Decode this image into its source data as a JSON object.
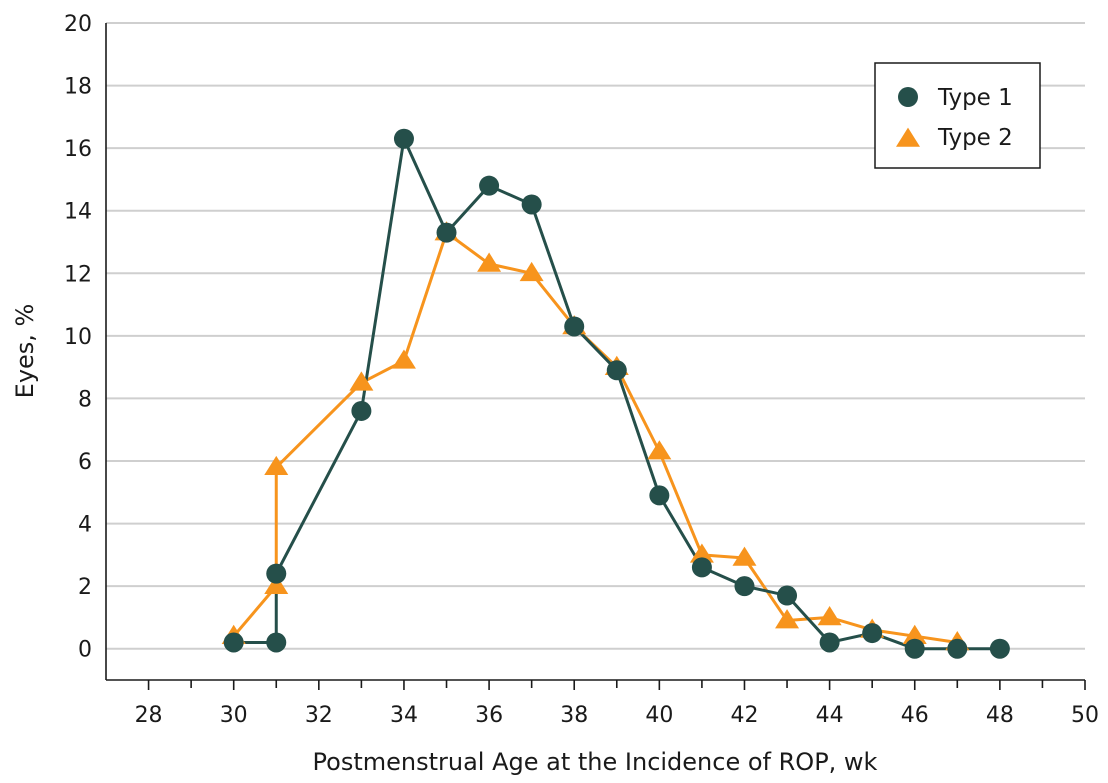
{
  "chart_data": {
    "type": "line",
    "title": "",
    "xlabel": "Postmenstrual Age at the Incidence of ROP, wk",
    "ylabel": "Eyes, %",
    "xlim": [
      27,
      50
    ],
    "ylim": [
      -1,
      20
    ],
    "x_ticks": [
      28,
      30,
      32,
      34,
      36,
      38,
      40,
      42,
      44,
      46,
      48,
      50
    ],
    "x_minor_ticks": [
      29,
      31,
      33,
      35,
      37,
      39,
      41,
      43,
      45,
      47,
      49
    ],
    "y_ticks": [
      0,
      2,
      4,
      6,
      8,
      10,
      12,
      14,
      16,
      18,
      20
    ],
    "grid": "horizontal",
    "legend_position": "top-right",
    "series": [
      {
        "name": "Type 1",
        "marker": "circle",
        "color": "#254f4a",
        "points": [
          [
            30,
            0.2
          ],
          [
            31,
            0.2
          ],
          [
            31,
            2.4
          ],
          [
            33,
            7.6
          ],
          [
            34,
            16.3
          ],
          [
            35,
            13.3
          ],
          [
            36,
            14.8
          ],
          [
            37,
            14.2
          ],
          [
            38,
            10.3
          ],
          [
            39,
            8.9
          ],
          [
            40,
            4.9
          ],
          [
            41,
            2.6
          ],
          [
            42,
            2.0
          ],
          [
            43,
            1.7
          ],
          [
            44,
            0.2
          ],
          [
            45,
            0.5
          ],
          [
            46,
            0.0
          ],
          [
            47,
            0.0
          ],
          [
            48,
            0.0
          ]
        ]
      },
      {
        "name": "Type 2",
        "marker": "triangle",
        "color": "#f7941d",
        "points": [
          [
            30,
            0.4
          ],
          [
            31,
            2.0
          ],
          [
            31,
            5.8
          ],
          [
            33,
            8.5
          ],
          [
            34,
            9.2
          ],
          [
            35,
            13.3
          ],
          [
            36,
            12.3
          ],
          [
            37,
            12.0
          ],
          [
            38,
            10.3
          ],
          [
            39,
            9.0
          ],
          [
            40,
            6.3
          ],
          [
            41,
            3.0
          ],
          [
            42,
            2.9
          ],
          [
            43,
            0.9
          ],
          [
            44,
            1.0
          ],
          [
            45,
            0.6
          ],
          [
            46,
            0.4
          ],
          [
            47,
            0.2
          ]
        ]
      }
    ]
  }
}
